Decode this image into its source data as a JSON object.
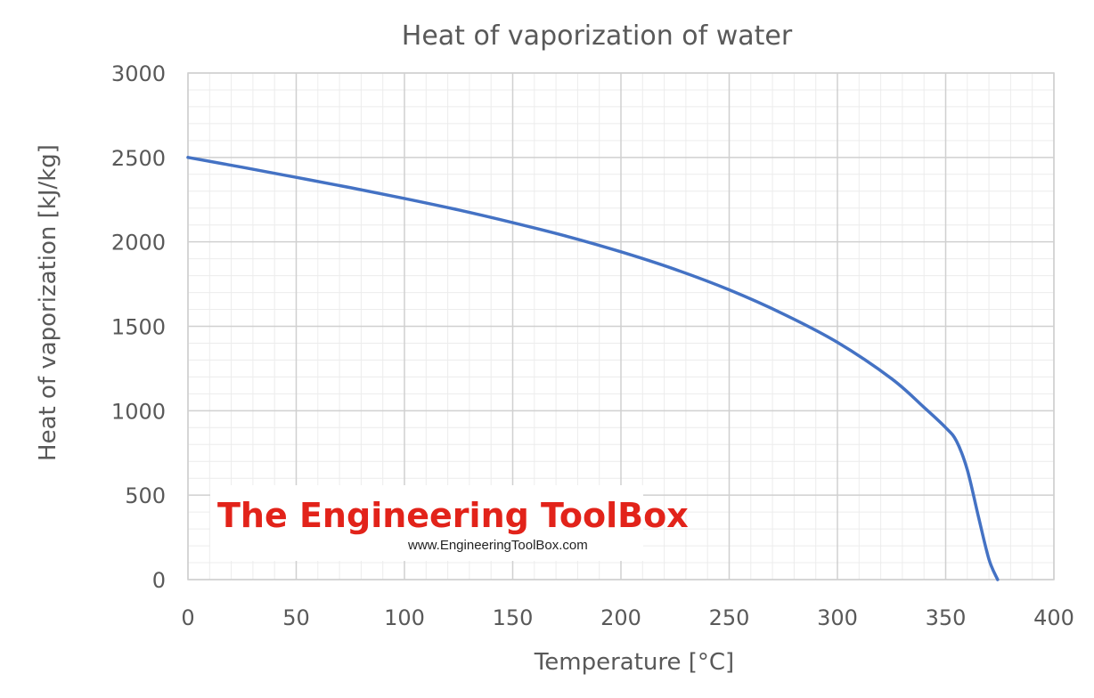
{
  "chart_data": {
    "type": "line",
    "title": "Heat of vaporization of water",
    "xlabel": "Temperature [°C]",
    "ylabel": "Heat of vaporization [kJ/kg]",
    "xlim": [
      0,
      400
    ],
    "ylim": [
      0,
      3000
    ],
    "xticks": [
      "0",
      "50",
      "100",
      "150",
      "200",
      "250",
      "300",
      "350",
      "400"
    ],
    "yticks": [
      "0",
      "500",
      "1000",
      "1500",
      "2000",
      "2500",
      "3000"
    ],
    "grid": true,
    "legend": "none",
    "series": [
      {
        "color": "#4472c4",
        "x": [
          0,
          25,
          50,
          75,
          100,
          125,
          150,
          175,
          200,
          225,
          250,
          275,
          300,
          325,
          340,
          350,
          355,
          360,
          365,
          370,
          374
        ],
        "y": [
          2500,
          2442,
          2382,
          2321,
          2257,
          2189,
          2114,
          2033,
          1941,
          1837,
          1716,
          1573,
          1405,
          1190,
          1020,
          900,
          820,
          650,
          380,
          120,
          0
        ]
      }
    ]
  },
  "watermark": {
    "brand": "The Engineering ToolBox",
    "url": "www.EngineeringToolBox.com"
  }
}
